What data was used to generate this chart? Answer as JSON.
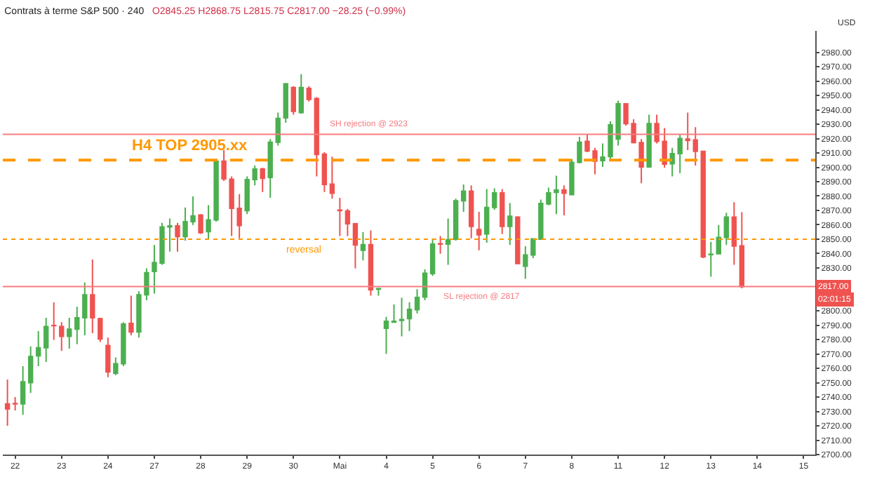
{
  "chart_data": {
    "type": "candlestick",
    "title": "Contrats à terme S&P 500 · 240",
    "subtitle": "O2845.25 H2868.75 L2815.75 C2817.00 −28.25 (−0.99%)",
    "ylabel": "USD",
    "categories": [
      null,
      "22",
      null,
      null,
      null,
      null,
      null,
      "23",
      null,
      null,
      null,
      null,
      null,
      "24",
      null,
      null,
      null,
      null,
      null,
      "27",
      null,
      null,
      null,
      null,
      null,
      "28",
      null,
      null,
      null,
      null,
      null,
      "29",
      null,
      null,
      null,
      null,
      null,
      "30",
      null,
      null,
      null,
      null,
      null,
      "Mai",
      null,
      null,
      null,
      null,
      null,
      "4",
      null,
      null,
      null,
      null,
      null,
      "5",
      null,
      null,
      null,
      null,
      null,
      "6",
      null,
      null,
      null,
      null,
      null,
      "7",
      null,
      null,
      null,
      null,
      null,
      "8",
      null,
      null,
      null,
      null,
      null,
      "11",
      null,
      null,
      null,
      null,
      null,
      "12",
      null,
      null,
      null,
      null,
      null,
      "13",
      null,
      null,
      null,
      null,
      null,
      "14",
      null,
      null,
      null,
      null,
      null,
      "15",
      null
    ],
    "ohlc": [
      [
        2735.3,
        2752.2,
        2720.0,
        2731.7
      ],
      [
        2735.5,
        2740.0,
        2730.7,
        2735.3
      ],
      [
        2735.3,
        2761.5,
        2727.7,
        2750.7
      ],
      [
        2750.1,
        2775.3,
        2743.0,
        2768.2
      ],
      [
        2768.8,
        2786.0,
        2761.5,
        2774.4
      ],
      [
        2774.4,
        2795.3,
        2764.5,
        2789.1
      ],
      [
        2789.9,
        2806.0,
        2779.9,
        2789.7
      ],
      [
        2789.1,
        2792.2,
        2772.2,
        2782.3
      ],
      [
        2782.3,
        2795.3,
        2773.8,
        2787.3
      ],
      [
        2787.3,
        2802.9,
        2776.8,
        2795.3
      ],
      [
        2795.3,
        2819.8,
        2783.0,
        2811.2
      ],
      [
        2811.2,
        2835.8,
        2784.5,
        2795.3
      ],
      [
        2794.6,
        2795.3,
        2778.4,
        2780.5
      ],
      [
        2775.9,
        2781.4,
        2753.8,
        2757.5
      ],
      [
        2756.5,
        2767.6,
        2755.3,
        2763.3
      ],
      [
        2763.3,
        2792.2,
        2761.5,
        2790.9
      ],
      [
        2791.3,
        2810.6,
        2783.0,
        2785.4
      ],
      [
        2785.4,
        2813.7,
        2781.4,
        2811.2
      ],
      [
        2811.2,
        2829.7,
        2807.5,
        2826.6
      ],
      [
        2827.5,
        2845.9,
        2812.1,
        2833.7
      ],
      [
        2833.3,
        2861.3,
        2832.1,
        2858.5
      ],
      [
        2858.5,
        2864.4,
        2841.3,
        2859.2
      ],
      [
        2859.2,
        2861.3,
        2841.3,
        2851.8
      ],
      [
        2851.8,
        2872.1,
        2849.0,
        2862.2
      ],
      [
        2862.2,
        2879.7,
        2859.8,
        2866.2
      ],
      [
        2866.8,
        2867.4,
        2853.6,
        2854.5
      ],
      [
        2855.2,
        2873.6,
        2849.9,
        2863.4
      ],
      [
        2863.4,
        2905.8,
        2862.2,
        2904.3
      ],
      [
        2904.3,
        2912.0,
        2890.5,
        2892.0
      ],
      [
        2891.7,
        2893.6,
        2852.1,
        2871.4
      ],
      [
        2871.4,
        2881.3,
        2850.5,
        2859.5
      ],
      [
        2869.9,
        2893.6,
        2867.4,
        2891.4
      ],
      [
        2891.4,
        2901.2,
        2887.4,
        2898.8
      ],
      [
        2898.8,
        2899.7,
        2882.8,
        2892.3
      ],
      [
        2892.9,
        2919.7,
        2878.8,
        2917.5
      ],
      [
        2917.5,
        2938.1,
        2915.1,
        2934.1
      ],
      [
        2934.4,
        2958.7,
        2931.0,
        2958.1
      ],
      [
        2955.6,
        2956.5,
        2936.6,
        2939.0
      ],
      [
        2938.1,
        2964.8,
        2937.2,
        2955.6
      ],
      [
        2955.0,
        2956.5,
        2945.8,
        2947.3
      ],
      [
        2947.9,
        2948.9,
        2893.6,
        2908.9
      ],
      [
        2909.2,
        2910.5,
        2882.8,
        2888.0
      ],
      [
        2888.3,
        2907.4,
        2878.2,
        2881.9
      ],
      [
        2870.2,
        2878.8,
        2852.1,
        2869.9
      ],
      [
        2869.6,
        2871.1,
        2852.1,
        2860.7
      ],
      [
        2860.7,
        2861.3,
        2829.7,
        2845.9
      ],
      [
        2842.3,
        2854.9,
        2835.2,
        2846.2
      ],
      [
        2846.2,
        2856.1,
        2810.6,
        2814.6
      ],
      [
        2815.2,
        2816.1,
        2810.6,
        2815.5
      ],
      [
        2787.9,
        2795.9,
        2770.1,
        2792.8
      ],
      [
        2792.2,
        2804.5,
        2792.2,
        2792.8
      ],
      [
        2793.4,
        2809.1,
        2782.3,
        2794.0
      ],
      [
        2794.6,
        2806.0,
        2786.0,
        2801.1
      ],
      [
        2800.8,
        2815.2,
        2798.3,
        2809.4
      ],
      [
        2809.7,
        2829.0,
        2807.5,
        2826.3
      ],
      [
        2826.0,
        2850.5,
        2824.4,
        2846.5
      ],
      [
        2846.8,
        2852.1,
        2839.8,
        2846.5
      ],
      [
        2846.5,
        2864.4,
        2832.1,
        2849.6
      ],
      [
        2849.9,
        2878.2,
        2849.0,
        2876.7
      ],
      [
        2876.7,
        2888.0,
        2869.0,
        2883.4
      ],
      [
        2883.4,
        2887.4,
        2850.5,
        2858.8
      ],
      [
        2856.7,
        2869.0,
        2842.3,
        2853.0
      ],
      [
        2853.6,
        2884.9,
        2847.5,
        2872.1
      ],
      [
        2872.1,
        2885.3,
        2870.5,
        2882.2
      ],
      [
        2882.2,
        2884.9,
        2853.6,
        2858.8
      ],
      [
        2858.8,
        2875.1,
        2845.9,
        2865.9
      ],
      [
        2865.3,
        2865.9,
        2832.7,
        2833.0
      ],
      [
        2831.2,
        2845.0,
        2822.3,
        2838.9
      ],
      [
        2838.9,
        2850.5,
        2836.7,
        2850.2
      ],
      [
        2849.9,
        2877.6,
        2849.9,
        2874.8
      ],
      [
        2874.5,
        2885.9,
        2873.6,
        2882.2
      ],
      [
        2882.5,
        2894.2,
        2867.4,
        2884.3
      ],
      [
        2884.3,
        2887.4,
        2866.5,
        2881.9
      ],
      [
        2881.0,
        2905.8,
        2880.7,
        2903.4
      ],
      [
        2903.4,
        2921.2,
        2902.8,
        2917.5
      ],
      [
        2918.1,
        2922.7,
        2910.5,
        2911.4
      ],
      [
        2911.4,
        2913.5,
        2895.1,
        2904.3
      ],
      [
        2904.6,
        2916.6,
        2900.3,
        2907.1
      ],
      [
        2907.4,
        2932.0,
        2905.8,
        2929.5
      ],
      [
        2919.7,
        2946.4,
        2915.1,
        2944.2
      ],
      [
        2944.2,
        2944.2,
        2928.9,
        2930.4
      ],
      [
        2930.4,
        2933.5,
        2916.6,
        2917.2
      ],
      [
        2917.2,
        2919.7,
        2888.9,
        2900.3
      ],
      [
        2900.3,
        2936.6,
        2900.3,
        2930.4
      ],
      [
        2930.4,
        2936.6,
        2916.6,
        2918.1
      ],
      [
        2918.1,
        2927.3,
        2899.7,
        2902.2
      ],
      [
        2902.5,
        2913.5,
        2893.6,
        2909.5
      ],
      [
        2909.5,
        2922.7,
        2896.0,
        2920.0
      ],
      [
        2919.7,
        2938.1,
        2912.0,
        2918.7
      ],
      [
        2919.1,
        2928.0,
        2901.2,
        2911.1
      ],
      [
        2911.1,
        2911.1,
        2836.7,
        2837.6
      ],
      [
        2839.2,
        2848.1,
        2823.8,
        2839.5
      ],
      [
        2839.8,
        2859.8,
        2839.8,
        2851.2
      ],
      [
        2851.2,
        2868.4,
        2845.9,
        2865.3
      ],
      [
        2865.3,
        2875.7,
        2832.1,
        2845.2
      ],
      [
        2845.25,
        2868.75,
        2815.75,
        2817.0
      ],
      null,
      null,
      null,
      null,
      null,
      null,
      null,
      null,
      null
    ],
    "colors": [
      "#ef5350",
      "#ef5350",
      "#4caf50",
      "#4caf50",
      "#4caf50",
      "#4caf50",
      "#ef5350",
      "#ef5350",
      "#4caf50",
      "#4caf50",
      "#4caf50",
      "#ef5350",
      "#ef5350",
      "#ef5350",
      "#4caf50",
      "#4caf50",
      "#ef5350",
      "#4caf50",
      "#4caf50",
      "#4caf50",
      "#4caf50",
      "#4caf50",
      "#ef5350",
      "#4caf50",
      "#4caf50",
      "#ef5350",
      "#4caf50",
      "#4caf50",
      "#ef5350",
      "#ef5350",
      "#ef5350",
      "#4caf50",
      "#4caf50",
      "#ef5350",
      "#4caf50",
      "#4caf50",
      "#4caf50",
      "#ef5350",
      "#4caf50",
      "#ef5350",
      "#ef5350",
      "#ef5350",
      "#ef5350",
      "#ef5350",
      "#ef5350",
      "#ef5350",
      "#4caf50",
      "#ef5350",
      "#4caf50",
      "#4caf50",
      "#4caf50",
      "#4caf50",
      "#4caf50",
      "#4caf50",
      "#4caf50",
      "#4caf50",
      "#ef5350",
      "#4caf50",
      "#4caf50",
      "#4caf50",
      "#ef5350",
      "#ef5350",
      "#4caf50",
      "#4caf50",
      "#ef5350",
      "#4caf50",
      "#ef5350",
      "#4caf50",
      "#4caf50",
      "#4caf50",
      "#4caf50",
      "#4caf50",
      "#ef5350",
      "#4caf50",
      "#4caf50",
      "#ef5350",
      "#ef5350",
      "#4caf50",
      "#4caf50",
      "#4caf50",
      "#ef5350",
      "#ef5350",
      "#ef5350",
      "#4caf50",
      "#ef5350",
      "#ef5350",
      "#4caf50",
      "#4caf50",
      "#ef5350",
      "#ef5350",
      "#ef5350",
      "#4caf50",
      "#4caf50",
      "#4caf50",
      "#ef5350",
      "#ef5350",
      null,
      null,
      null,
      null,
      null,
      null,
      null,
      null,
      null
    ],
    "ylim": [
      2700,
      2995
    ],
    "yticks": [
      {
        "value": 2700,
        "label": "2700.00"
      },
      {
        "value": 2710,
        "label": "2710.00"
      },
      {
        "value": 2720,
        "label": "2720.00"
      },
      {
        "value": 2730,
        "label": "2730.00"
      },
      {
        "value": 2740,
        "label": "2740.00"
      },
      {
        "value": 2750,
        "label": "2750.00"
      },
      {
        "value": 2760,
        "label": "2760.00"
      },
      {
        "value": 2770,
        "label": "2770.00"
      },
      {
        "value": 2780,
        "label": "2780.00"
      },
      {
        "value": 2790,
        "label": "2790.00"
      },
      {
        "value": 2800,
        "label": "2800.00"
      },
      {
        "value": 2830,
        "label": "2830.00"
      },
      {
        "value": 2840,
        "label": "2840.00"
      },
      {
        "value": 2850,
        "label": "2850.00"
      },
      {
        "value": 2860,
        "label": "2860.00"
      },
      {
        "value": 2870,
        "label": "2870.00"
      },
      {
        "value": 2880,
        "label": "2880.00"
      },
      {
        "value": 2890,
        "label": "2890.00"
      },
      {
        "value": 2900,
        "label": "2900.00"
      },
      {
        "value": 2910,
        "label": "2910.00"
      },
      {
        "value": 2920,
        "label": "2920.00"
      },
      {
        "value": 2930,
        "label": "2930.00"
      },
      {
        "value": 2940,
        "label": "2940.00"
      },
      {
        "value": 2950,
        "label": "2950.00"
      },
      {
        "value": 2960,
        "label": "2960.00"
      },
      {
        "value": 2970,
        "label": "2970.00"
      },
      {
        "value": 2980,
        "label": "2980.00"
      }
    ],
    "ref_lines": [
      {
        "axis": "y",
        "value": 2923,
        "label": "SH rejection @ 2923",
        "color": "#f77c80",
        "line_style": "solid"
      },
      {
        "axis": "y",
        "value": 2905,
        "label": "H4 TOP 2905.xx",
        "color": "#ff9800",
        "line_style": "dashed"
      },
      {
        "axis": "y",
        "value": 2850,
        "label": "reversal",
        "color": "#ff9800",
        "line_style": "dotted"
      },
      {
        "axis": "y",
        "value": 2817,
        "label": "SL rejection @ 2817",
        "color": "#f77c80",
        "line_style": "solid"
      }
    ],
    "annotations": [
      {
        "text": "2817.00",
        "y": 2817
      },
      "02:01:15"
    ]
  }
}
